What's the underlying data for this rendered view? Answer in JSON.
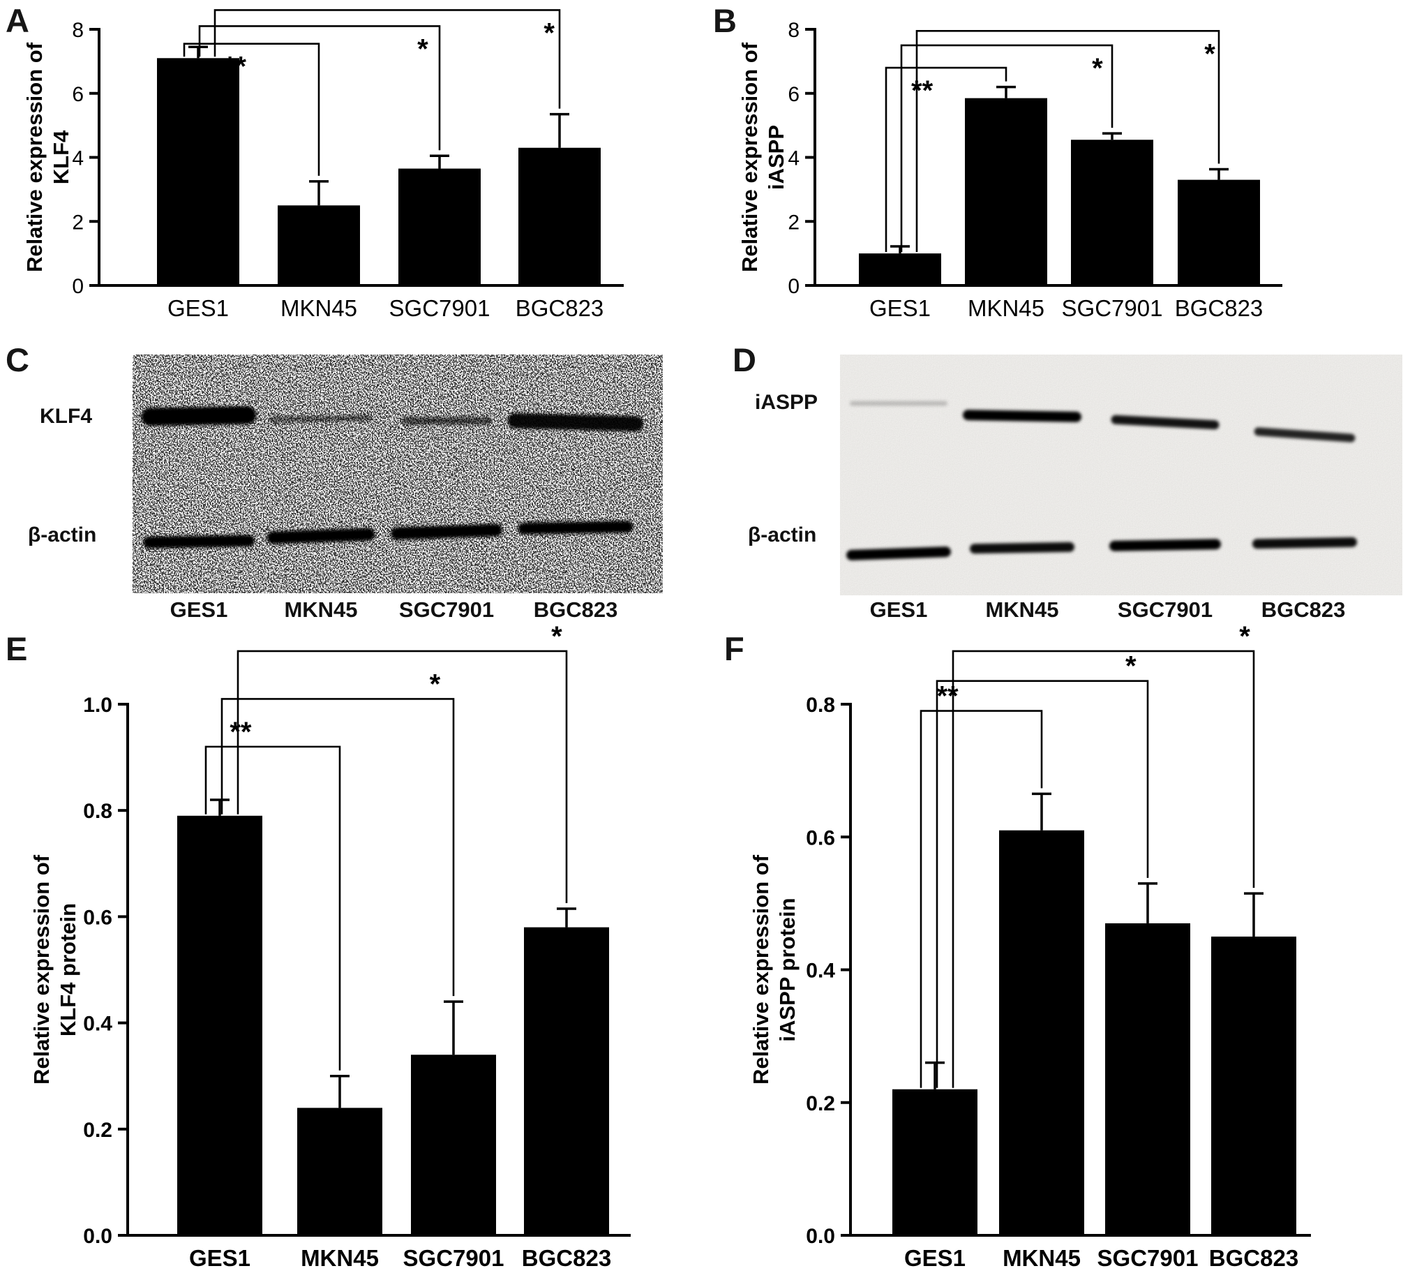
{
  "panels": {
    "A": "A",
    "B": "B",
    "C": "C",
    "D": "D",
    "E": "E",
    "F": "F"
  },
  "chart_data": [
    {
      "panel": "A",
      "type": "bar",
      "title": "",
      "ylabel_lines": [
        "Relative expression of",
        "KLF4"
      ],
      "categories": [
        "GES1",
        "MKN45",
        "SGC7901",
        "BGC823"
      ],
      "values": [
        7.1,
        2.5,
        3.65,
        4.3
      ],
      "errors": [
        0.35,
        0.75,
        0.4,
        1.05
      ],
      "ylim": [
        0,
        8
      ],
      "ytick_values": [
        0,
        2,
        4,
        6,
        8
      ],
      "ytick_labels": [
        "0",
        "2",
        "4",
        "6",
        "8"
      ],
      "bar_color": "#000000",
      "grid": false,
      "comparisons": [
        {
          "from": 0,
          "to": 1,
          "label": "**"
        },
        {
          "from": 0,
          "to": 2,
          "label": "*"
        },
        {
          "from": 0,
          "to": 3,
          "label": "*"
        }
      ]
    },
    {
      "panel": "B",
      "type": "bar",
      "title": "",
      "ylabel_lines": [
        "Relative expression of",
        "iASPP"
      ],
      "categories": [
        "GES1",
        "MKN45",
        "SGC7901",
        "BGC823"
      ],
      "values": [
        1.0,
        5.85,
        4.55,
        3.3
      ],
      "errors": [
        0.22,
        0.35,
        0.2,
        0.33
      ],
      "ylim": [
        0,
        8
      ],
      "ytick_values": [
        0,
        2,
        4,
        6,
        8
      ],
      "ytick_labels": [
        "0",
        "2",
        "4",
        "6",
        "8"
      ],
      "bar_color": "#000000",
      "grid": false,
      "comparisons": [
        {
          "from": 0,
          "to": 1,
          "label": "**"
        },
        {
          "from": 0,
          "to": 2,
          "label": "*"
        },
        {
          "from": 0,
          "to": 3,
          "label": "*"
        }
      ]
    },
    {
      "panel": "E",
      "type": "bar",
      "title": "",
      "ylabel_lines": [
        "Relative expression of",
        "KLF4 protein"
      ],
      "categories": [
        "GES1",
        "MKN45",
        "SGC7901",
        "BGC823"
      ],
      "values": [
        0.79,
        0.24,
        0.34,
        0.58
      ],
      "errors": [
        0.03,
        0.06,
        0.1,
        0.035
      ],
      "ylim": [
        0,
        1.0
      ],
      "ytick_values": [
        0,
        0.2,
        0.4,
        0.6,
        0.8,
        1.0
      ],
      "ytick_labels": [
        "0.0",
        "0.2",
        "0.4",
        "0.6",
        "0.8",
        "1.0"
      ],
      "bar_color": "#000000",
      "grid": false,
      "comparisons": [
        {
          "from": 0,
          "to": 1,
          "label": "**"
        },
        {
          "from": 0,
          "to": 2,
          "label": "*"
        },
        {
          "from": 0,
          "to": 3,
          "label": "*"
        }
      ]
    },
    {
      "panel": "F",
      "type": "bar",
      "title": "",
      "ylabel_lines": [
        "Relative expression of",
        "iASPP protein"
      ],
      "categories": [
        "GES1",
        "MKN45",
        "SGC7901",
        "BGC823"
      ],
      "values": [
        0.22,
        0.61,
        0.47,
        0.45
      ],
      "errors": [
        0.04,
        0.055,
        0.06,
        0.065
      ],
      "ylim": [
        0,
        0.8
      ],
      "ytick_values": [
        0,
        0.2,
        0.4,
        0.6,
        0.8
      ],
      "ytick_labels": [
        "0.0",
        "0.2",
        "0.4",
        "0.6",
        "0.8"
      ],
      "bar_color": "#000000",
      "grid": false,
      "comparisons": [
        {
          "from": 0,
          "to": 1,
          "label": "**"
        },
        {
          "from": 0,
          "to": 2,
          "label": "*"
        },
        {
          "from": 0,
          "to": 3,
          "label": "*"
        }
      ]
    }
  ],
  "blots": [
    {
      "panel": "C",
      "lanes": [
        "GES1",
        "MKN45",
        "SGC7901",
        "BGC823"
      ],
      "rows": [
        {
          "label": "KLF4",
          "intensities": [
            1.0,
            0.5,
            0.62,
            0.95
          ]
        },
        {
          "label": "β-actin",
          "intensities": [
            1.0,
            1.0,
            1.0,
            1.0
          ]
        }
      ]
    },
    {
      "panel": "D",
      "lanes": [
        "GES1",
        "MKN45",
        "SGC7901",
        "BGC823"
      ],
      "rows": [
        {
          "label": "iASPP",
          "intensities": [
            0.2,
            1.0,
            0.92,
            0.85
          ]
        },
        {
          "label": "β-actin",
          "intensities": [
            1.0,
            0.95,
            1.0,
            0.95
          ]
        }
      ]
    }
  ]
}
